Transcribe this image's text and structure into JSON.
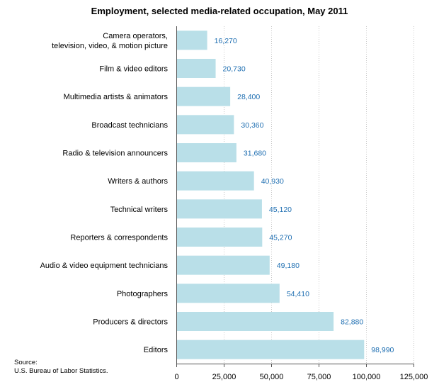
{
  "chart_data": {
    "type": "bar",
    "orientation": "horizontal",
    "title": "Employment, selected media-related occupation, May 2011",
    "categories": [
      [
        "Camera operators,",
        "television, video, & motion picture"
      ],
      [
        "Film & video editors"
      ],
      [
        "Multimedia artists & animators"
      ],
      [
        "Broadcast technicians"
      ],
      [
        "Radio & television announcers"
      ],
      [
        "Writers & authors"
      ],
      [
        "Technical writers"
      ],
      [
        "Reporters & correspondents"
      ],
      [
        "Audio & video equipment technicians"
      ],
      [
        "Photographers"
      ],
      [
        "Producers & directors"
      ],
      [
        "Editors"
      ]
    ],
    "values": [
      16270,
      20730,
      28400,
      30360,
      31680,
      40930,
      45120,
      45270,
      49180,
      54410,
      82880,
      98990
    ],
    "value_labels": [
      "16,270",
      "20,730",
      "28,400",
      "30,360",
      "31,680",
      "40,930",
      "45,120",
      "45,270",
      "49,180",
      "54,410",
      "82,880",
      "98,990"
    ],
    "xlim": [
      0,
      125000
    ],
    "xticks": [
      0,
      25000,
      50000,
      75000,
      100000,
      125000
    ],
    "xtick_labels": [
      "0",
      "25,000",
      "50,000",
      "75,000",
      "100,000",
      "125,000"
    ],
    "grid": true,
    "xlabel": "",
    "ylabel": "",
    "colors": {
      "bar": "#b9dfe8",
      "value_label": "#1f6fb2"
    }
  },
  "source": {
    "label": "Source:",
    "text": "U.S. Bureau of Labor Statistics."
  }
}
